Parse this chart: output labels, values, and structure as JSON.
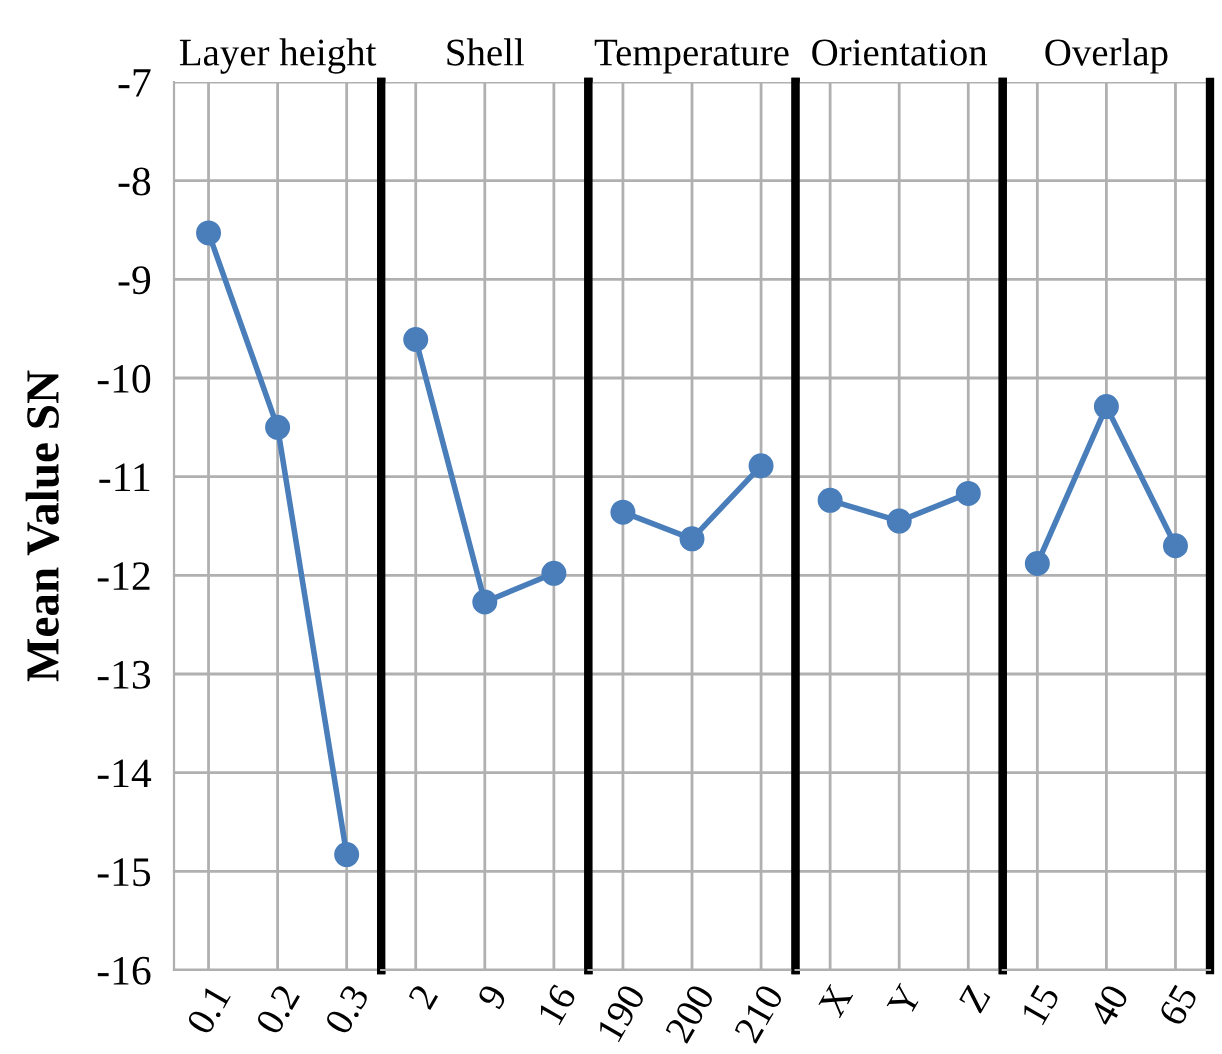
{
  "chart_data": [
    {
      "type": "line",
      "title": "Layer height",
      "ylabel": "Mean Value SN",
      "categories": [
        "0.1",
        "0.2",
        "0.3"
      ],
      "values": [
        -8.53,
        -10.5,
        -14.83
      ],
      "color": "#4a7ebb",
      "marker": "circle",
      "ylim": [
        -16,
        -7
      ],
      "yticks": [
        -16,
        -15,
        -14,
        -13,
        -12,
        -11,
        -10,
        -9,
        -8,
        -7
      ],
      "grid": true
    },
    {
      "type": "line",
      "title": "Shell",
      "categories": [
        "2",
        "9",
        "16"
      ],
      "values": [
        -9.61,
        -12.27,
        -11.98
      ],
      "color": "#4a7ebb",
      "marker": "circle",
      "ylim": [
        -16,
        -7
      ],
      "grid": true,
      "tick_labels": "x"
    },
    {
      "type": "line",
      "title": "Temperature",
      "categories": [
        "190",
        "200",
        "210"
      ],
      "values": [
        -11.36,
        -11.63,
        -10.89
      ],
      "color": "#4a7ebb",
      "marker": "circle",
      "ylim": [
        -16,
        -7
      ],
      "grid": true,
      "tick_labels": "x"
    },
    {
      "type": "line",
      "title": "Orientation",
      "categories": [
        "X",
        "Y",
        "Z"
      ],
      "values": [
        -11.24,
        -11.45,
        -11.17
      ],
      "color": "#4a7ebb",
      "marker": "circle",
      "ylim": [
        -16,
        -7
      ],
      "grid": true,
      "tick_labels": "x"
    },
    {
      "type": "line",
      "title": "Overlap",
      "categories": [
        "15",
        "40",
        "65"
      ],
      "values": [
        -11.88,
        -10.29,
        -11.7
      ],
      "color": "#4a7ebb",
      "marker": "circle",
      "ylim": [
        -16,
        -7
      ],
      "grid": true,
      "tick_labels": "x"
    }
  ]
}
